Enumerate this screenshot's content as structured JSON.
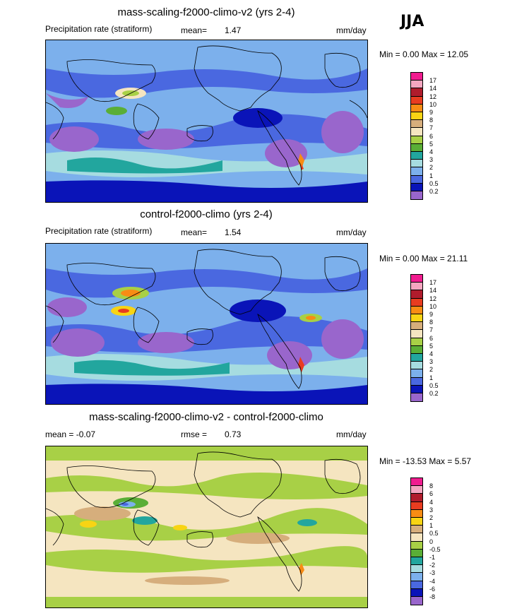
{
  "season": "JJA",
  "panels": [
    {
      "title": "mass-scaling-f2000-climo-v2 (yrs 2-4)",
      "left_label": "Precipitation rate (stratiform)",
      "stat_label": "mean=",
      "stat_value": "1.47",
      "units": "mm/day",
      "minmax": "Min =   0.00 Max =  12.05",
      "colorbar": {
        "labels": [
          "17",
          "14",
          "12",
          "10",
          "9",
          "8",
          "7",
          "6",
          "5",
          "4",
          "3",
          "2",
          "1",
          "0.5",
          "0.2"
        ],
        "colors": [
          "#f01c8f",
          "#f4a6c0",
          "#b01c2c",
          "#e83c20",
          "#f88c14",
          "#f8d414",
          "#d6ae7c",
          "#f5e5c0",
          "#a8d046",
          "#5aae36",
          "#22a69e",
          "#a6dce0",
          "#7cb0ec",
          "#4a68e0",
          "#0a14b8",
          "#9966cc"
        ]
      }
    },
    {
      "title": "control-f2000-climo (yrs 2-4)",
      "left_label": "Precipitation rate (stratiform)",
      "stat_label": "mean=",
      "stat_value": "1.54",
      "units": "mm/day",
      "minmax": "Min =   0.00 Max =  21.11",
      "colorbar": {
        "labels": [
          "17",
          "14",
          "12",
          "10",
          "9",
          "8",
          "7",
          "6",
          "5",
          "4",
          "3",
          "2",
          "1",
          "0.5",
          "0.2"
        ],
        "colors": [
          "#f01c8f",
          "#f4a6c0",
          "#b01c2c",
          "#e83c20",
          "#f88c14",
          "#f8d414",
          "#d6ae7c",
          "#f5e5c0",
          "#a8d046",
          "#5aae36",
          "#22a69e",
          "#a6dce0",
          "#7cb0ec",
          "#4a68e0",
          "#0a14b8",
          "#9966cc"
        ]
      }
    },
    {
      "title": "mass-scaling-f2000-climo-v2 - control-f2000-climo",
      "left_label": "mean =   -0.07",
      "stat_label": "rmse =",
      "stat_value": "0.73",
      "units": "mm/day",
      "minmax": "Min = -13.53 Max =    5.57",
      "colorbar": {
        "labels": [
          "8",
          "6",
          "4",
          "3",
          "2",
          "1",
          "0.5",
          "0",
          "-0.5",
          "-1",
          "-2",
          "-3",
          "-4",
          "-6",
          "-8"
        ],
        "colors": [
          "#f01c8f",
          "#f4a6c0",
          "#b01c2c",
          "#e83c20",
          "#f88c14",
          "#f8d414",
          "#d6ae7c",
          "#f5e5c0",
          "#a8d046",
          "#5aae36",
          "#22a69e",
          "#a6dce0",
          "#7cb0ec",
          "#4a68e0",
          "#0a14b8",
          "#9966cc"
        ]
      }
    }
  ],
  "chart_data": [
    {
      "type": "heatmap",
      "title": "mass-scaling-f2000-climo-v2 (yrs 2-4)",
      "variable": "Precipitation rate (stratiform)",
      "units": "mm/day",
      "mean": 1.47,
      "min": 0.0,
      "max": 12.05,
      "levels": [
        0.2,
        0.5,
        1,
        2,
        3,
        4,
        5,
        6,
        7,
        8,
        9,
        10,
        12,
        14,
        17
      ]
    },
    {
      "type": "heatmap",
      "title": "control-f2000-climo (yrs 2-4)",
      "variable": "Precipitation rate (stratiform)",
      "units": "mm/day",
      "mean": 1.54,
      "min": 0.0,
      "max": 21.11,
      "levels": [
        0.2,
        0.5,
        1,
        2,
        3,
        4,
        5,
        6,
        7,
        8,
        9,
        10,
        12,
        14,
        17
      ]
    },
    {
      "type": "heatmap",
      "title": "mass-scaling-f2000-climo-v2 - control-f2000-climo",
      "units": "mm/day",
      "mean": -0.07,
      "rmse": 0.73,
      "min": -13.53,
      "max": 5.57,
      "levels": [
        -8,
        -6,
        -4,
        -3,
        -2,
        -1,
        -0.5,
        0,
        0.5,
        1,
        2,
        3,
        4,
        6,
        8
      ]
    }
  ]
}
